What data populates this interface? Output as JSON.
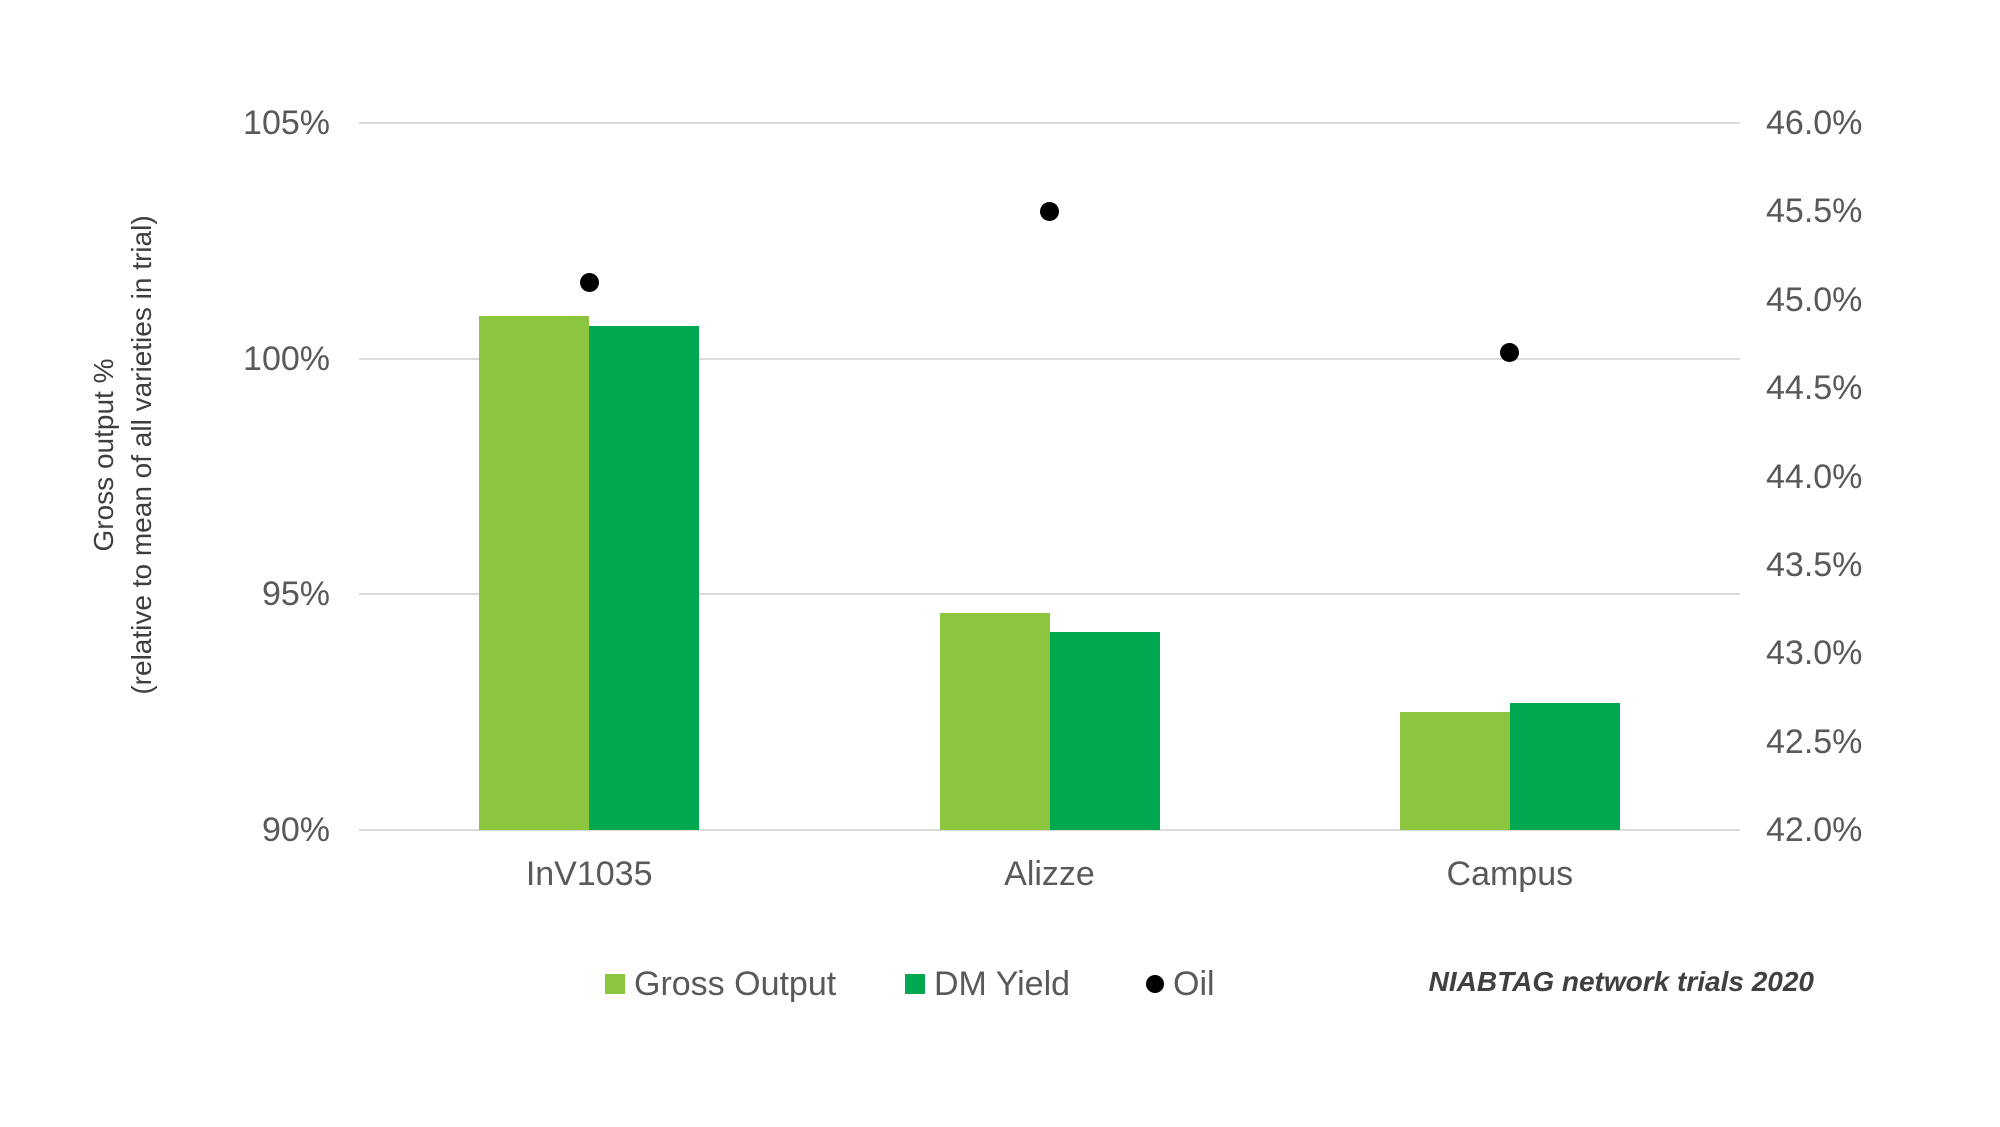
{
  "chart_data": {
    "type": "bar",
    "categories": [
      "InV1035",
      "Alizze",
      "Campus"
    ],
    "series": [
      {
        "name": "Gross Output",
        "type": "bar",
        "axis": "left",
        "color": "#8CC63E",
        "values": [
          100.9,
          94.6,
          92.5
        ]
      },
      {
        "name": "DM Yield",
        "type": "bar",
        "axis": "left",
        "color": "#00A94F",
        "values": [
          100.7,
          94.2,
          92.7
        ]
      },
      {
        "name": "Oil",
        "type": "scatter",
        "axis": "right",
        "color": "#000000",
        "values": [
          45.1,
          45.5,
          44.7
        ]
      }
    ],
    "left_axis": {
      "title_line1": "Gross output %",
      "title_line2": "(relative to mean of all varieties in trial)",
      "min": 90,
      "max": 105,
      "tick_labels": [
        "105%",
        "100%",
        "95%",
        "90%"
      ],
      "tick_values": [
        105,
        100,
        95,
        90
      ]
    },
    "right_axis": {
      "min": 42,
      "max": 46,
      "tick_labels": [
        "46.0%",
        "45.5%",
        "45.0%",
        "44.5%",
        "44.0%",
        "43.5%",
        "43.0%",
        "42.5%",
        "42.0%"
      ],
      "tick_values": [
        46,
        45.5,
        45,
        44.5,
        44,
        43.5,
        43,
        42.5,
        42
      ]
    },
    "legend": {
      "position": "bottom",
      "items": [
        {
          "label": "Gross Output",
          "marker": "square",
          "color": "#8CC63E"
        },
        {
          "label": "DM Yield",
          "marker": "square",
          "color": "#00A94F"
        },
        {
          "label": "Oil",
          "marker": "circle",
          "color": "#000000"
        }
      ]
    },
    "grid": true,
    "annotation": "NIABTAG network trials 2020",
    "colors": {
      "gridline": "#DBDBDB",
      "tick_text": "#595959",
      "axis_title_text": "#3E3E3E",
      "annotation_text": "#404040"
    }
  }
}
